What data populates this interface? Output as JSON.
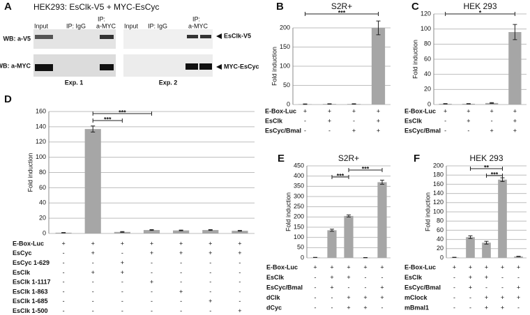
{
  "blot": {
    "panel": "A",
    "title": "HEK293: EsClk-V5 + MYC-EsCyc",
    "lanes_1": [
      "Input",
      "IP: IgG",
      "IP:",
      "a-MYC"
    ],
    "lanes_2": [
      "Input",
      "IP: IgG",
      "IP:",
      "a-MYC"
    ],
    "rows": [
      "WB: a-V5",
      "WB: a-MYC"
    ],
    "experiments": [
      "Exp. 1",
      "Exp. 2"
    ],
    "bands": [
      "EsClk-V5",
      "MYC-EsCyc"
    ]
  },
  "chart_data": [
    {
      "type": "bar",
      "panel": "B",
      "title": "S2R+",
      "y_label": "Fold induction",
      "color": "#a6a6a6",
      "grid": true,
      "values": [
        1,
        1.5,
        1.5,
        200
      ],
      "errors": [
        0.5,
        0.5,
        0.5,
        18
      ],
      "ylim": [
        0,
        200
      ],
      "yticks": [
        0,
        50,
        100,
        150,
        200
      ],
      "significance": [
        {
          "label": "***",
          "between": [
            0,
            3
          ]
        }
      ],
      "conditions": [
        {
          "label": "E-Box-Luc",
          "signs": [
            "+",
            "+",
            "+",
            "+"
          ]
        },
        {
          "label": "EsClk",
          "signs": [
            "-",
            "+",
            "-",
            "+"
          ]
        },
        {
          "label": "EsCyc/Bmal",
          "signs": [
            "-",
            "-",
            "+",
            "+"
          ]
        }
      ]
    },
    {
      "type": "bar",
      "panel": "C",
      "title": "HEK 293",
      "y_label": "Fold induction",
      "color": "#a6a6a6",
      "grid": true,
      "values": [
        1,
        1,
        2,
        96
      ],
      "errors": [
        0.3,
        0.3,
        0.5,
        10
      ],
      "ylim": [
        0,
        120
      ],
      "yticks": [
        0,
        20,
        40,
        60,
        80,
        100,
        120
      ],
      "significance": [
        {
          "label": "*",
          "between": [
            0,
            3
          ]
        }
      ],
      "conditions": [
        {
          "label": "E-Box-Luc",
          "signs": [
            "+",
            "+",
            "+",
            "+"
          ]
        },
        {
          "label": "EsClk",
          "signs": [
            "-",
            "+",
            "-",
            "+"
          ]
        },
        {
          "label": "EsCyc/Bmal",
          "signs": [
            "-",
            "-",
            "+",
            "+"
          ]
        }
      ]
    },
    {
      "type": "bar",
      "panel": "D",
      "y_label": "Fold induction",
      "color": "#a6a6a6",
      "grid": true,
      "values": [
        1,
        137,
        2,
        4.5,
        4,
        4.5,
        3.5
      ],
      "errors": [
        0.3,
        4,
        0.5,
        0.5,
        0.5,
        0.5,
        0.5
      ],
      "ylim": [
        0,
        160
      ],
      "yticks": [
        0,
        20,
        40,
        60,
        80,
        100,
        120,
        140,
        160
      ],
      "significance": [
        {
          "label": "***",
          "between": [
            1,
            3
          ]
        },
        {
          "label": "***",
          "between": [
            1,
            2
          ]
        }
      ],
      "conditions": [
        {
          "label": "E-Box-Luc",
          "signs": [
            "+",
            "+",
            "+",
            "+",
            "+",
            "+",
            "+"
          ]
        },
        {
          "label": "EsCyc",
          "signs": [
            "-",
            "+",
            "-",
            "+",
            "+",
            "+",
            "+"
          ]
        },
        {
          "label": "EsCyc 1-629",
          "signs": [
            "-",
            "-",
            "+",
            "-",
            "-",
            "-",
            "-"
          ]
        },
        {
          "label": "EsClk",
          "signs": [
            "-",
            "+",
            "+",
            "-",
            "-",
            "-",
            "-"
          ]
        },
        {
          "label": "EsClk 1-1117",
          "signs": [
            "-",
            "-",
            "-",
            "+",
            "-",
            "-",
            "-"
          ]
        },
        {
          "label": "EsClk 1-863",
          "signs": [
            "-",
            "-",
            "-",
            "-",
            "+",
            "-",
            "-"
          ]
        },
        {
          "label": "EsClk 1-685",
          "signs": [
            "-",
            "-",
            "-",
            "-",
            "-",
            "+",
            "-"
          ]
        },
        {
          "label": "EsClk 1-500",
          "signs": [
            "-",
            "-",
            "-",
            "-",
            "-",
            "-",
            "+"
          ]
        }
      ]
    },
    {
      "type": "bar",
      "panel": "E",
      "title": "S2R+",
      "y_label": "Fold induction",
      "color": "#a6a6a6",
      "grid": true,
      "values": [
        2,
        135,
        205,
        1,
        370
      ],
      "errors": [
        0.5,
        5,
        5,
        0.5,
        10
      ],
      "ylim": [
        0,
        450
      ],
      "yticks": [
        0,
        50,
        100,
        150,
        200,
        250,
        300,
        350,
        400,
        450
      ],
      "significance": [
        {
          "label": "***",
          "between": [
            2,
            4
          ]
        },
        {
          "label": "***",
          "between": [
            1,
            2
          ]
        }
      ],
      "conditions": [
        {
          "label": "E-Box-Luc",
          "signs": [
            "+",
            "+",
            "+",
            "+",
            "+"
          ]
        },
        {
          "label": "EsClk",
          "signs": [
            "-",
            "+",
            "+",
            "-",
            "-"
          ]
        },
        {
          "label": "EsCyc/Bmal",
          "signs": [
            "-",
            "+",
            "-",
            "-",
            "+"
          ]
        },
        {
          "label": "dClk",
          "signs": [
            "-",
            "-",
            "+",
            "+",
            "+"
          ]
        },
        {
          "label": "dCyc",
          "signs": [
            "-",
            "-",
            "+",
            "+",
            "-"
          ]
        }
      ]
    },
    {
      "type": "bar",
      "panel": "F",
      "title": "HEK 293",
      "y_label": "Fold induction",
      "color": "#a6a6a6",
      "grid": true,
      "values": [
        1,
        45,
        33,
        170,
        3
      ],
      "errors": [
        0.3,
        3,
        3,
        4,
        0.5
      ],
      "ylim": [
        0,
        200
      ],
      "yticks": [
        0,
        20,
        40,
        60,
        80,
        100,
        120,
        140,
        160,
        180,
        200
      ],
      "significance": [
        {
          "label": "**",
          "between": [
            1,
            3
          ]
        },
        {
          "label": "***",
          "between": [
            2,
            3
          ]
        }
      ],
      "conditions": [
        {
          "label": "E-Box-Luc",
          "signs": [
            "+",
            "+",
            "+",
            "+",
            "+"
          ]
        },
        {
          "label": "EsClk",
          "signs": [
            "-",
            "+",
            "+",
            "-",
            "-"
          ]
        },
        {
          "label": "EsCyc/Bmal",
          "signs": [
            "-",
            "+",
            "-",
            "-",
            "+"
          ]
        },
        {
          "label": "mClock",
          "signs": [
            "-",
            "-",
            "+",
            "+",
            "+"
          ]
        },
        {
          "label": "mBmal1",
          "signs": [
            "-",
            "-",
            "+",
            "+",
            "-"
          ]
        }
      ]
    }
  ]
}
